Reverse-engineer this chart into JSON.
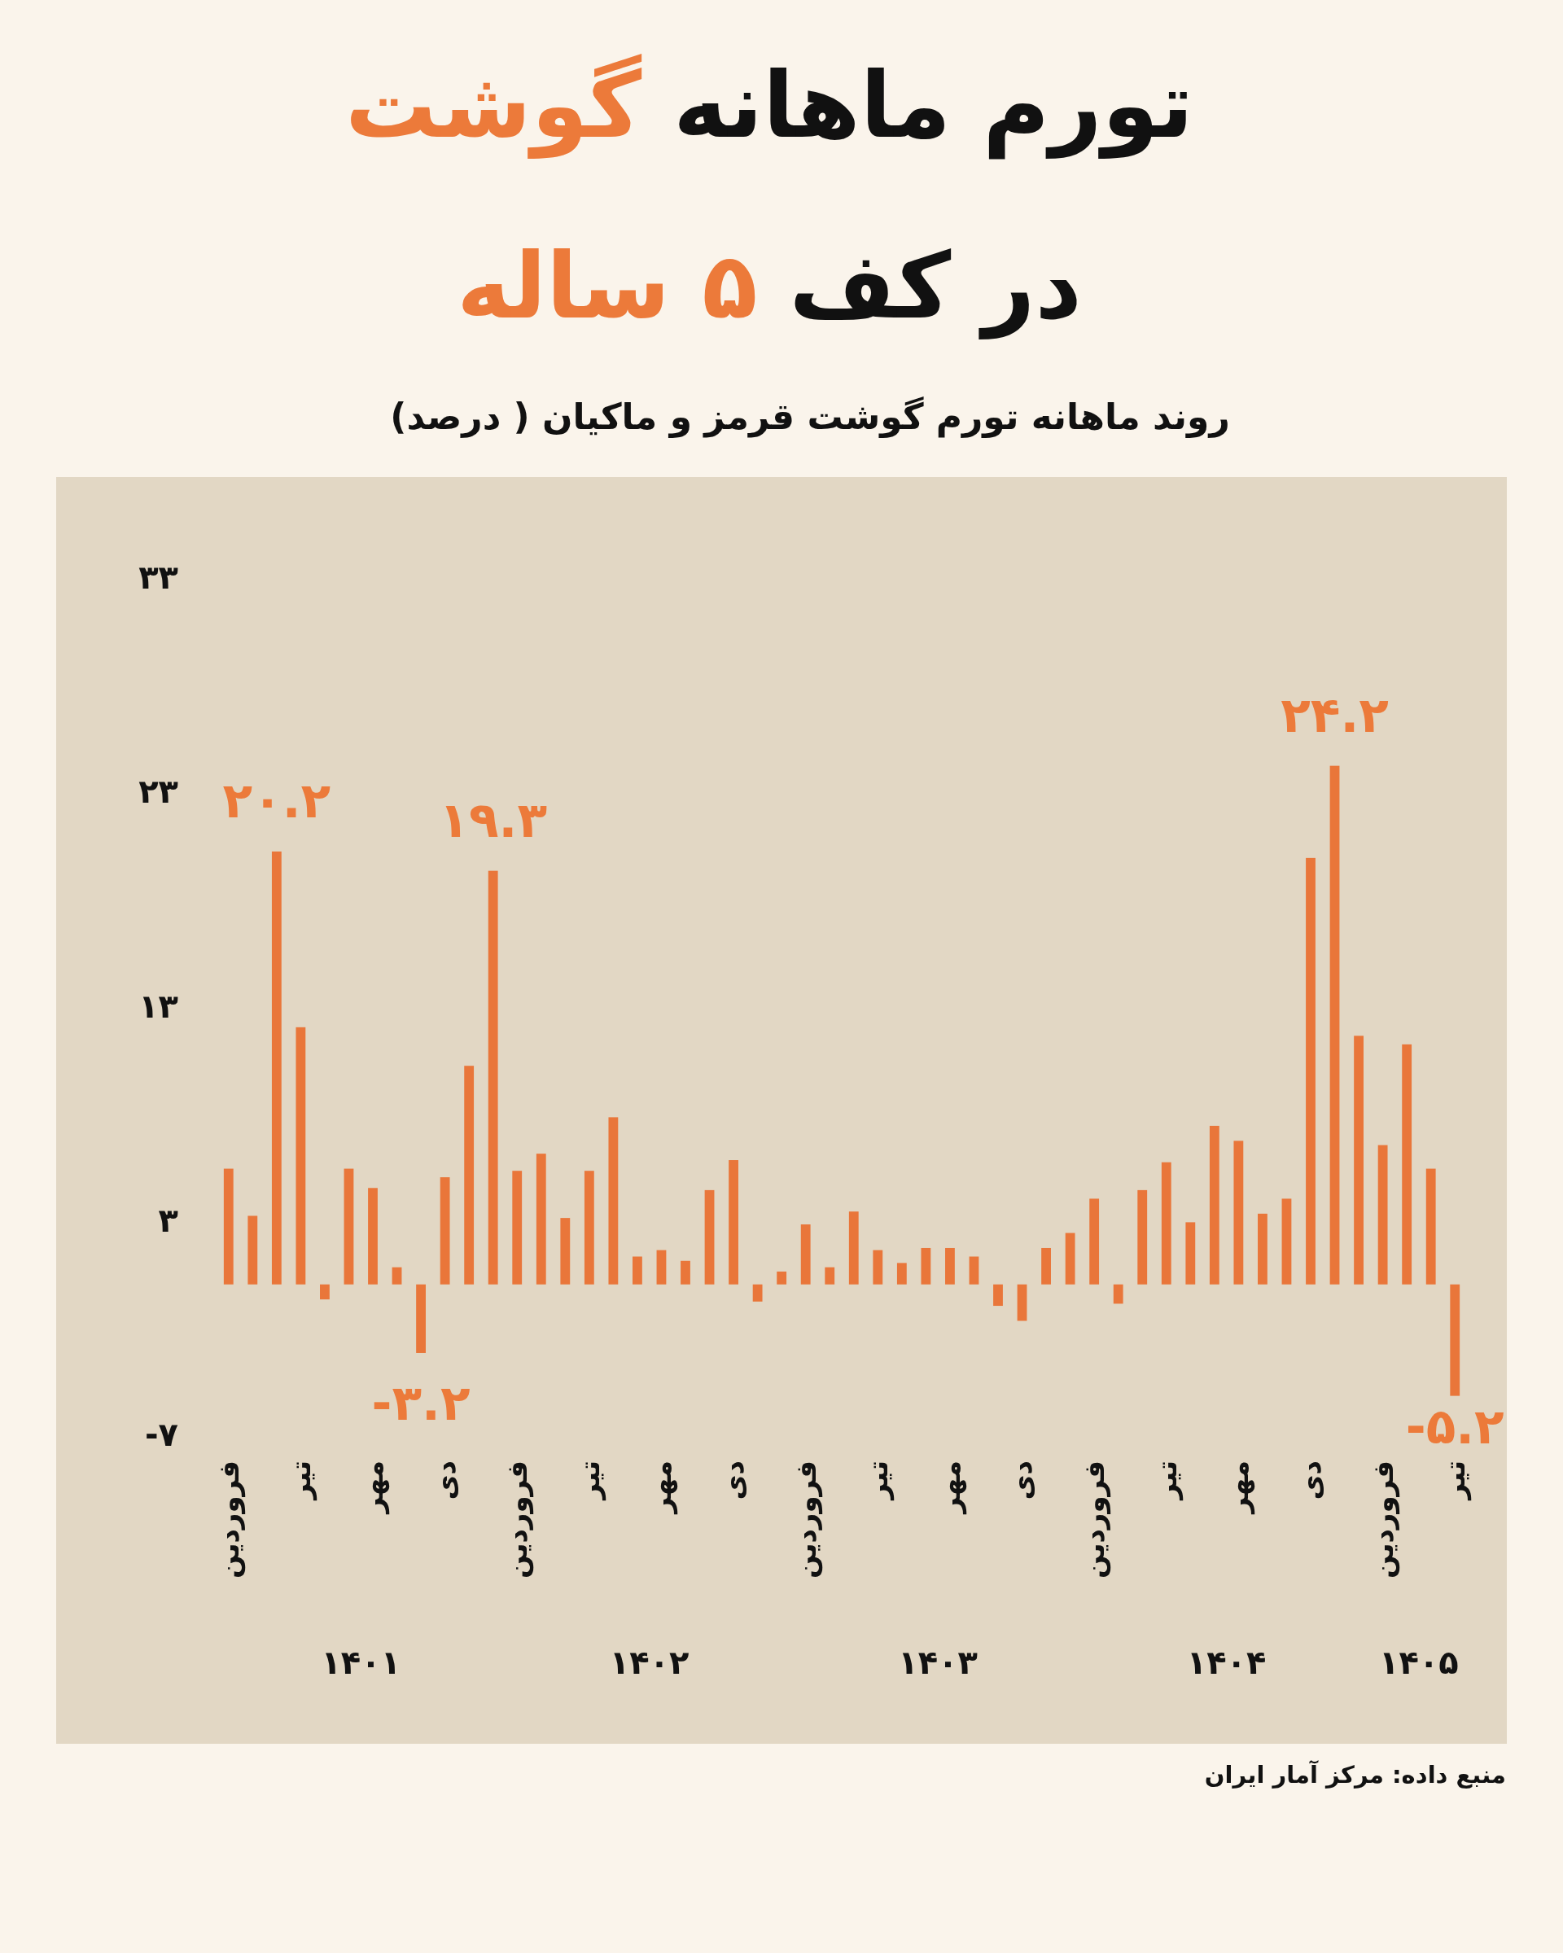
{
  "chart_data": {
    "type": "bar",
    "title": "تورم ماهانه گوشت در کف ۵ ساله",
    "subtitle": "روند ماهانه تورم گوشت قرمز و ماکیان ( درصد)",
    "categories": [
      "فروردین",
      null,
      null,
      "تیر",
      null,
      null,
      "مهر",
      null,
      null,
      "دی",
      null,
      null,
      "فروردین",
      null,
      null,
      "تیر",
      null,
      null,
      "مهر",
      null,
      null,
      "دی",
      null,
      null,
      "فروردین",
      null,
      null,
      "تیر",
      null,
      null,
      "مهر",
      null,
      null,
      "دی",
      null,
      null,
      "فروردین",
      null,
      null,
      "تیر",
      null,
      null,
      "مهر",
      null,
      null,
      "دی",
      null,
      null,
      "فروردین",
      null,
      null,
      "تیر"
    ],
    "values": [
      5.4,
      3.2,
      20.2,
      12.0,
      -0.7,
      5.4,
      4.5,
      0.8,
      -3.2,
      5.0,
      10.2,
      19.3,
      5.3,
      6.1,
      3.1,
      5.3,
      7.8,
      1.3,
      1.6,
      1.1,
      4.4,
      5.8,
      -0.8,
      0.6,
      2.8,
      0.8,
      3.4,
      1.6,
      1.0,
      1.7,
      1.7,
      1.3,
      -1.0,
      -1.7,
      1.7,
      2.4,
      4.0,
      -0.9,
      4.4,
      5.7,
      2.9,
      7.4,
      6.7,
      3.3,
      4.0,
      19.9,
      24.2,
      11.6,
      6.5,
      11.2,
      5.4,
      -5.2
    ],
    "value_labels": [
      null,
      null,
      "۲۰.۲",
      null,
      null,
      null,
      null,
      null,
      "-۳.۲",
      null,
      null,
      "۱۹.۳",
      null,
      null,
      null,
      null,
      null,
      null,
      null,
      null,
      null,
      null,
      null,
      null,
      null,
      null,
      null,
      null,
      null,
      null,
      null,
      null,
      null,
      null,
      null,
      null,
      null,
      null,
      null,
      null,
      null,
      null,
      null,
      null,
      null,
      null,
      "۲۴.۲",
      null,
      null,
      null,
      null,
      "-۵.۲"
    ],
    "color": "#e9763a",
    "ylim": [
      -7,
      33
    ],
    "yticks": [
      {
        "value": -7,
        "label": "-۷"
      },
      {
        "value": 3,
        "label": "۳"
      },
      {
        "value": 13,
        "label": "۱۳"
      },
      {
        "value": 23,
        "label": "۲۳"
      },
      {
        "value": 33,
        "label": "۳۳"
      }
    ],
    "annotations": [
      "۱۴۰۱",
      "۱۴۰۲",
      "۱۴۰۳",
      "۱۴۰۴",
      "۱۴۰۵",
      "منبع داده: مرکز آمار ایران"
    ]
  }
}
